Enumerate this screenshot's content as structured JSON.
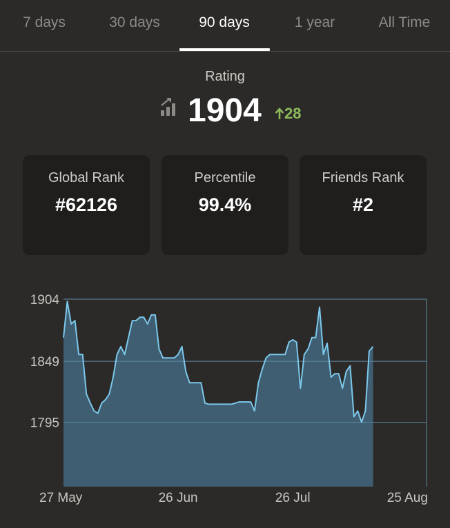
{
  "tabs": [
    {
      "label": "7 days",
      "active": false
    },
    {
      "label": "30 days",
      "active": false
    },
    {
      "label": "90 days",
      "active": true
    },
    {
      "label": "1 year",
      "active": false
    },
    {
      "label": "All Time",
      "active": false
    }
  ],
  "rating": {
    "label": "Rating",
    "value": "1904",
    "delta": "28",
    "icon": "rating-trend-icon",
    "delta_icon": "arrow-up-icon",
    "delta_color": "#8dbb5b"
  },
  "stats": [
    {
      "label": "Global Rank",
      "value": "#62126"
    },
    {
      "label": "Percentile",
      "value": "99.4%"
    },
    {
      "label": "Friends Rank",
      "value": "#2"
    }
  ],
  "chart_data": {
    "type": "area",
    "x_start": "2024-05-27",
    "x_end": "2024-08-30",
    "xticks": [
      {
        "label": "27 May",
        "date": "2024-05-27"
      },
      {
        "label": "26 Jun",
        "date": "2024-06-26"
      },
      {
        "label": "26 Jul",
        "date": "2024-07-26"
      },
      {
        "label": "25 Aug",
        "date": "2024-08-25"
      }
    ],
    "yticks": [
      1904,
      1849,
      1795
    ],
    "ylim": [
      1738,
      1904
    ],
    "grid": true,
    "fill_color": "#3f5e72",
    "line_color": "#7cc8ec",
    "points": [
      [
        "2024-05-27",
        1870
      ],
      [
        "2024-05-28",
        1902
      ],
      [
        "2024-05-29",
        1882
      ],
      [
        "2024-05-30",
        1885
      ],
      [
        "2024-05-31",
        1855
      ],
      [
        "2024-06-01",
        1855
      ],
      [
        "2024-06-02",
        1820
      ],
      [
        "2024-06-03",
        1812
      ],
      [
        "2024-06-04",
        1805
      ],
      [
        "2024-06-05",
        1803
      ],
      [
        "2024-06-06",
        1812
      ],
      [
        "2024-06-07",
        1815
      ],
      [
        "2024-06-08",
        1820
      ],
      [
        "2024-06-09",
        1835
      ],
      [
        "2024-06-10",
        1855
      ],
      [
        "2024-06-11",
        1862
      ],
      [
        "2024-06-12",
        1855
      ],
      [
        "2024-06-13",
        1870
      ],
      [
        "2024-06-14",
        1885
      ],
      [
        "2024-06-15",
        1885
      ],
      [
        "2024-06-16",
        1888
      ],
      [
        "2024-06-17",
        1888
      ],
      [
        "2024-06-18",
        1882
      ],
      [
        "2024-06-19",
        1890
      ],
      [
        "2024-06-20",
        1890
      ],
      [
        "2024-06-21",
        1860
      ],
      [
        "2024-06-22",
        1852
      ],
      [
        "2024-06-23",
        1852
      ],
      [
        "2024-06-24",
        1852
      ],
      [
        "2024-06-25",
        1852
      ],
      [
        "2024-06-26",
        1855
      ],
      [
        "2024-06-27",
        1862
      ],
      [
        "2024-06-28",
        1840
      ],
      [
        "2024-06-29",
        1830
      ],
      [
        "2024-06-30",
        1830
      ],
      [
        "2024-07-01",
        1830
      ],
      [
        "2024-07-02",
        1830
      ],
      [
        "2024-07-03",
        1812
      ],
      [
        "2024-07-04",
        1811
      ],
      [
        "2024-07-05",
        1811
      ],
      [
        "2024-07-06",
        1811
      ],
      [
        "2024-07-07",
        1811
      ],
      [
        "2024-07-08",
        1811
      ],
      [
        "2024-07-09",
        1811
      ],
      [
        "2024-07-10",
        1811
      ],
      [
        "2024-07-11",
        1812
      ],
      [
        "2024-07-12",
        1813
      ],
      [
        "2024-07-13",
        1813
      ],
      [
        "2024-07-14",
        1813
      ],
      [
        "2024-07-15",
        1813
      ],
      [
        "2024-07-16",
        1805
      ],
      [
        "2024-07-17",
        1830
      ],
      [
        "2024-07-18",
        1842
      ],
      [
        "2024-07-19",
        1852
      ],
      [
        "2024-07-20",
        1855
      ],
      [
        "2024-07-21",
        1855
      ],
      [
        "2024-07-22",
        1855
      ],
      [
        "2024-07-23",
        1855
      ],
      [
        "2024-07-24",
        1855
      ],
      [
        "2024-07-25",
        1866
      ],
      [
        "2024-07-26",
        1868
      ],
      [
        "2024-07-27",
        1866
      ],
      [
        "2024-07-28",
        1825
      ],
      [
        "2024-07-29",
        1855
      ],
      [
        "2024-07-30",
        1860
      ],
      [
        "2024-07-31",
        1870
      ],
      [
        "2024-08-01",
        1870
      ],
      [
        "2024-08-02",
        1897
      ],
      [
        "2024-08-03",
        1855
      ],
      [
        "2024-08-04",
        1865
      ],
      [
        "2024-08-05",
        1835
      ],
      [
        "2024-08-06",
        1838
      ],
      [
        "2024-08-07",
        1838
      ],
      [
        "2024-08-08",
        1825
      ],
      [
        "2024-08-09",
        1840
      ],
      [
        "2024-08-10",
        1845
      ],
      [
        "2024-08-11",
        1800
      ],
      [
        "2024-08-12",
        1805
      ],
      [
        "2024-08-13",
        1795
      ],
      [
        "2024-08-14",
        1805
      ],
      [
        "2024-08-15",
        1858
      ],
      [
        "2024-08-16",
        1862
      ]
    ]
  }
}
